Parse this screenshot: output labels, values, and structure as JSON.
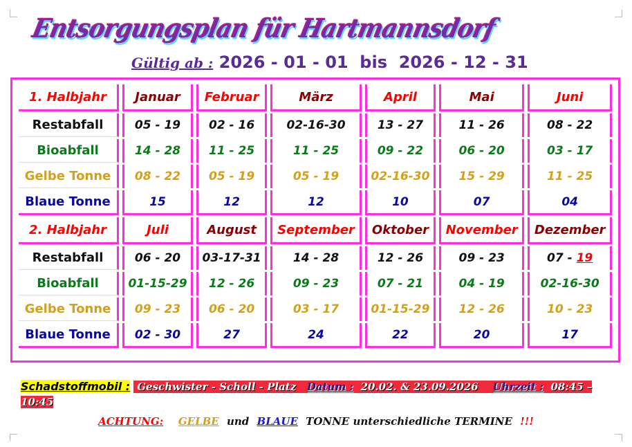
{
  "title": "Entsorgungsplan für Hartmannsdorf",
  "subtitle": {
    "prefix": "Gültig ab :",
    "range": "2026 - 01 - 01  bis  2026 - 12 - 31"
  },
  "labels": [
    "Restabfall",
    "Bioabfall",
    "Gelbe Tonne",
    "Blaue Tonne"
  ],
  "halves": [
    {
      "title": "1. Halbjahr",
      "months": [
        "Januar",
        "Februar",
        "März",
        "April",
        "Mai",
        "Juni"
      ],
      "month_colors": [
        "dred",
        "red",
        "dred",
        "red",
        "dred",
        "red"
      ],
      "rows": [
        [
          "05 - 19",
          "02 - 16",
          "02-16-30",
          "13 - 27",
          "11 - 26",
          "08 - 22"
        ],
        [
          "14 - 28",
          "11 - 25",
          "11 - 25",
          "09 - 22",
          "06 - 20",
          "03 - 17"
        ],
        [
          "08 - 22",
          "05 - 19",
          "05 - 19",
          "02-16-30",
          "15 - 29",
          "11 - 25"
        ],
        [
          "15",
          "12",
          "12",
          "10",
          "07",
          "04"
        ]
      ]
    },
    {
      "title": "2. Halbjahr",
      "months": [
        "Juli",
        "August",
        "September",
        "Oktober",
        "November",
        "Dezember"
      ],
      "month_colors": [
        "red",
        "dred",
        "red",
        "dred",
        "red",
        "dred"
      ],
      "rows": [
        [
          "06 - 20",
          "03-17-31",
          "14 - 28",
          "12 - 26",
          "09 - 23",
          "07 - 19"
        ],
        [
          "01-15-29",
          "12 - 26",
          "09 - 23",
          "07 - 21",
          "04 - 19",
          "02-16-30"
        ],
        [
          "09 - 23",
          "06 - 20",
          "03 - 17",
          "01-15-29",
          "12 - 26",
          "10 - 23"
        ],
        [
          "02 - 30",
          "27",
          "24",
          "22",
          "20",
          "17"
        ]
      ]
    }
  ],
  "dez_rest": {
    "a": "07 - ",
    "b": "19"
  },
  "info": {
    "label": "Schadstoffmobil :",
    "place": "Geschwister  - Scholl - Platz",
    "datum_label": "Datum :",
    "datum": "20.02. & 23.09.2026",
    "uhrzeit_label": "Uhrzeit :",
    "uhrzeit": "08:45 – 10:45"
  },
  "warning": {
    "achtung": "ACHTUNG:",
    "gelbe": "GELBE",
    "und": "und",
    "blaue": "BLAUE",
    "rest": "TONNE unterschiedliche TERMINE",
    "excl": "!!!"
  },
  "colors": {
    "magenta": "#ff2de0",
    "red": "#ff0000",
    "dark_red": "#8b0000",
    "green": "#0a7a1a",
    "yellow": "#d4a017",
    "blue": "#0a0a9a"
  }
}
